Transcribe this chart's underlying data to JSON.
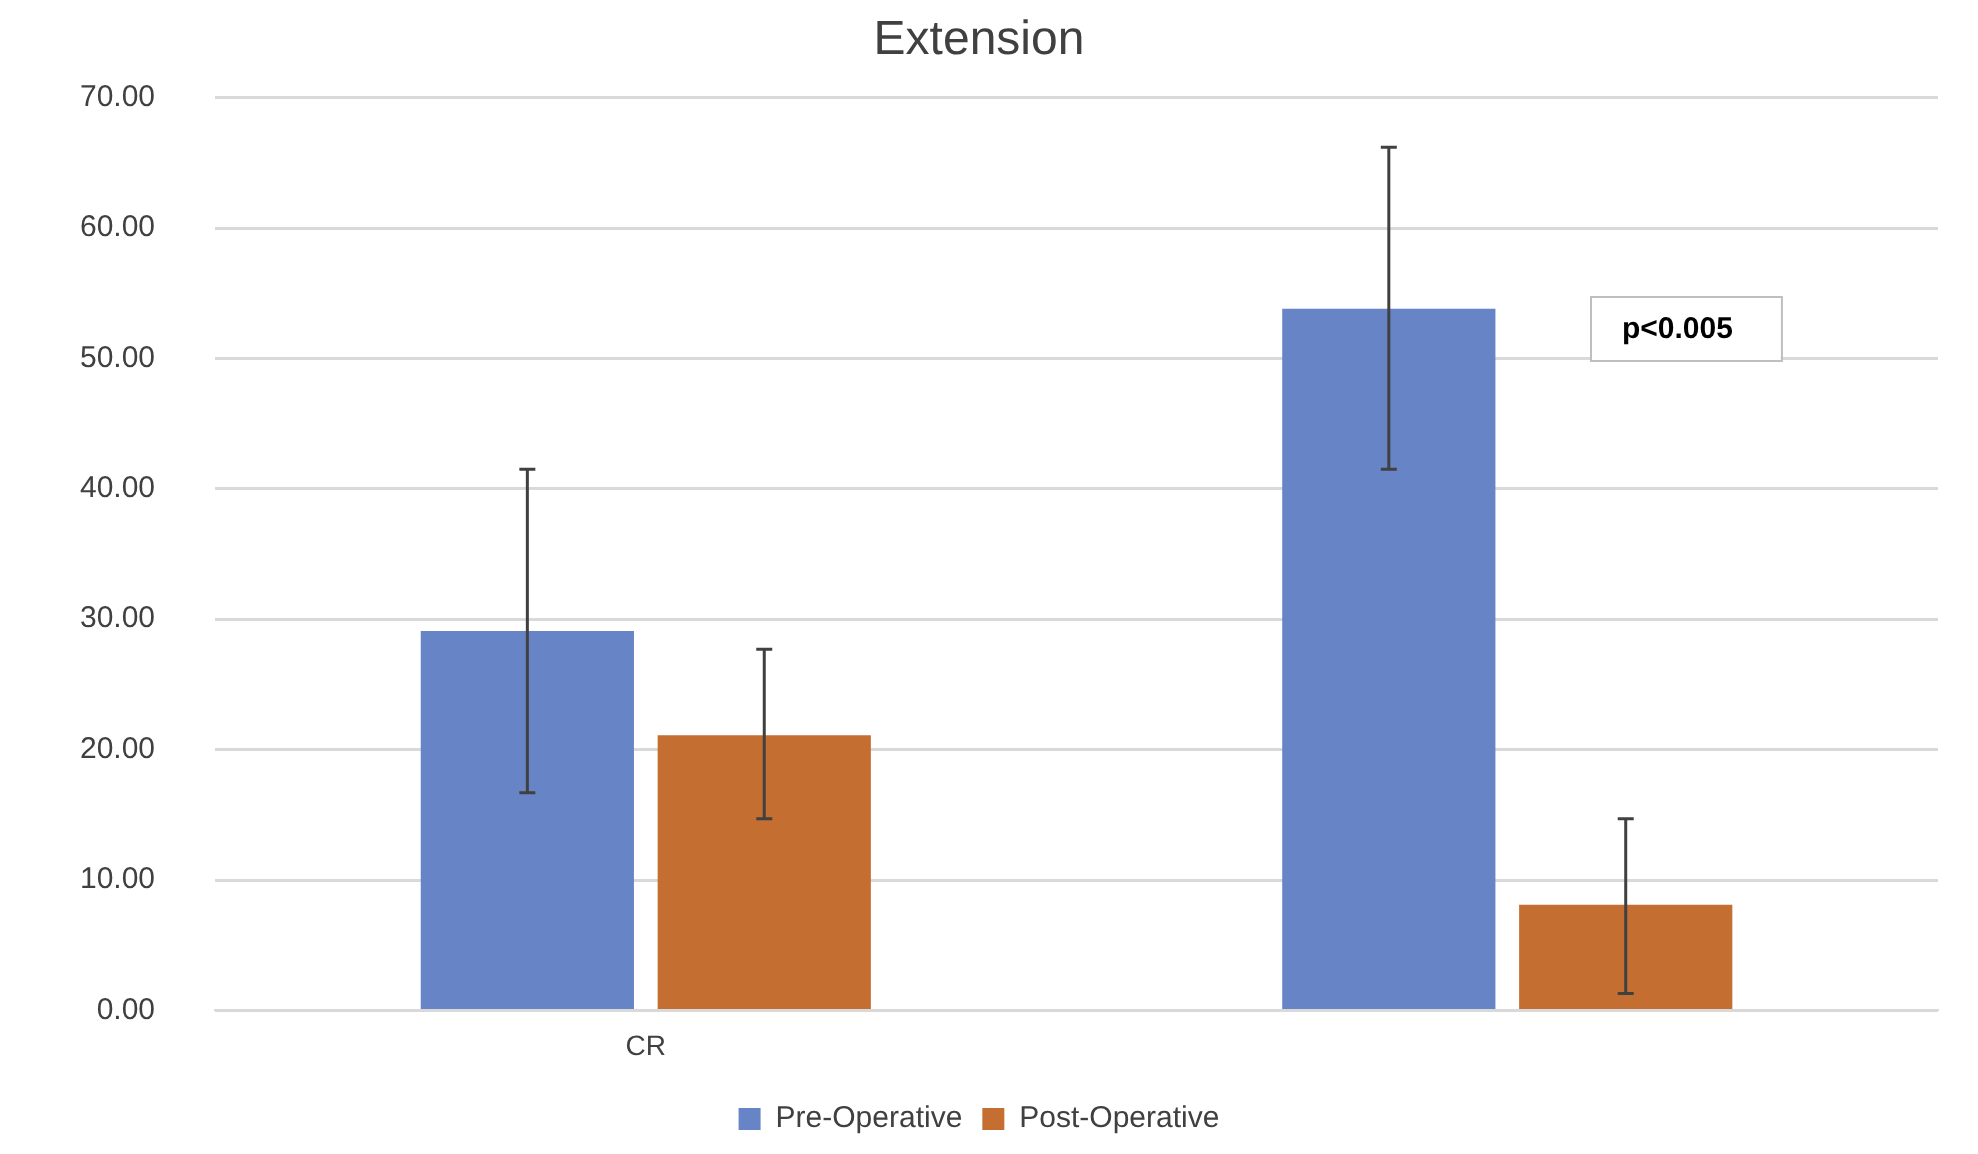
{
  "chart_data": {
    "type": "bar",
    "title": "Extension",
    "categories": [
      "CR",
      null
    ],
    "series": [
      {
        "name": "Pre-Operative",
        "color": "#6785c6",
        "values": [
          29.1,
          53.8
        ],
        "errors": [
          [
            16.7,
            41.5
          ],
          [
            41.5,
            66.2
          ]
        ]
      },
      {
        "name": "Post-Operative",
        "color": "#c46e31",
        "values": [
          21.1,
          8.1
        ],
        "errors": [
          [
            14.7,
            27.7
          ],
          [
            1.3,
            14.7
          ]
        ]
      }
    ],
    "ylim": [
      0,
      70
    ],
    "yticks": [
      {
        "value": 0,
        "label": "0.00"
      },
      {
        "value": 10,
        "label": "10.00"
      },
      {
        "value": 20,
        "label": "20.00"
      },
      {
        "value": 30,
        "label": "30.00"
      },
      {
        "value": 40,
        "label": "40.00"
      },
      {
        "value": 50,
        "label": "50.00"
      },
      {
        "value": 60,
        "label": "60.00"
      },
      {
        "value": 70,
        "label": "70.00"
      }
    ],
    "annotations": [
      "p<0.005"
    ],
    "grid": "y",
    "legend": "bottom"
  }
}
